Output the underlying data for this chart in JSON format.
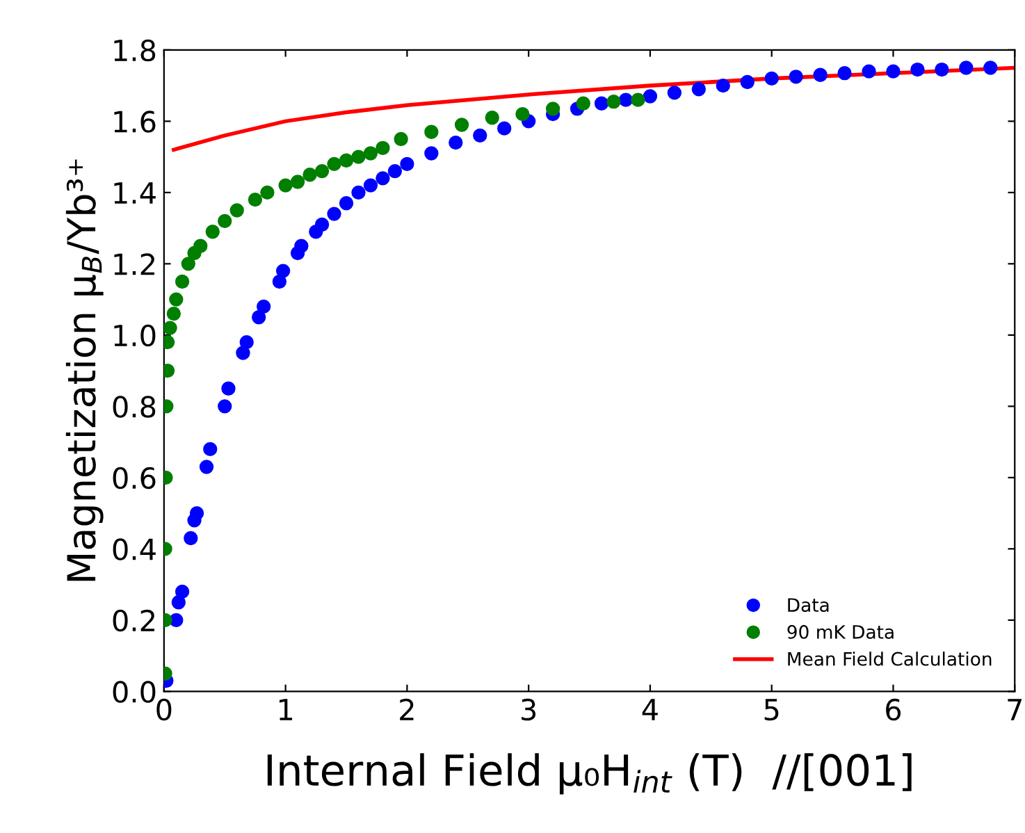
{
  "chart_data": {
    "type": "scatter",
    "xlabel": "Internal Field μ₀H$_{int}$ (T)  //[001]",
    "ylabel": "Magnetization μ$_{B}$/Yb³⁺",
    "xlim": [
      0,
      7
    ],
    "ylim": [
      0,
      1.8
    ],
    "xticks": [
      0,
      1,
      2,
      3,
      4,
      5,
      6,
      7
    ],
    "yticks": [
      {
        "value": 0,
        "label": "0.0"
      },
      {
        "value": 0.2,
        "label": "0.2"
      },
      {
        "value": 0.4,
        "label": "0.4"
      },
      {
        "value": 0.6,
        "label": "0.6"
      },
      {
        "value": 0.8,
        "label": "0.8"
      },
      {
        "value": 1.0,
        "label": "1.0"
      },
      {
        "value": 1.2,
        "label": "1.2"
      },
      {
        "value": 1.4,
        "label": "1.4"
      },
      {
        "value": 1.6,
        "label": "1.6"
      },
      {
        "value": 1.8,
        "label": "1.8"
      }
    ],
    "grid": false,
    "legend": "bottom right",
    "series": [
      {
        "name": "Data",
        "color": "#0000ff",
        "marker": "circle",
        "x": [
          0.02,
          0.1,
          0.12,
          0.15,
          0.22,
          0.25,
          0.27,
          0.35,
          0.38,
          0.5,
          0.53,
          0.65,
          0.68,
          0.78,
          0.82,
          0.95,
          0.98,
          1.1,
          1.13,
          1.25,
          1.3,
          1.4,
          1.5,
          1.6,
          1.7,
          1.8,
          1.9,
          2.0,
          2.2,
          2.4,
          2.6,
          2.8,
          3.0,
          3.2,
          3.4,
          3.6,
          3.8,
          4.0,
          4.2,
          4.4,
          4.6,
          4.8,
          5.0,
          5.2,
          5.4,
          5.6,
          5.8,
          6.0,
          6.2,
          6.4,
          6.6,
          6.8
        ],
        "values": [
          0.03,
          0.2,
          0.25,
          0.28,
          0.43,
          0.48,
          0.5,
          0.63,
          0.68,
          0.8,
          0.85,
          0.95,
          0.98,
          1.05,
          1.08,
          1.15,
          1.18,
          1.23,
          1.25,
          1.29,
          1.31,
          1.34,
          1.37,
          1.4,
          1.42,
          1.44,
          1.46,
          1.48,
          1.51,
          1.54,
          1.56,
          1.58,
          1.6,
          1.62,
          1.635,
          1.65,
          1.66,
          1.67,
          1.68,
          1.69,
          1.7,
          1.71,
          1.72,
          1.725,
          1.73,
          1.735,
          1.74,
          1.74,
          1.745,
          1.745,
          1.75,
          1.75
        ]
      },
      {
        "name": "90 mK Data",
        "color": "#007f00",
        "marker": "circle",
        "x": [
          0.01,
          0.01,
          0.01,
          0.015,
          0.02,
          0.03,
          0.03,
          0.05,
          0.08,
          0.1,
          0.15,
          0.2,
          0.25,
          0.3,
          0.4,
          0.5,
          0.6,
          0.75,
          0.85,
          1.0,
          1.1,
          1.2,
          1.3,
          1.4,
          1.5,
          1.6,
          1.7,
          1.8,
          1.95,
          2.2,
          2.45,
          2.7,
          2.95,
          3.2,
          3.45,
          3.7,
          3.9
        ],
        "values": [
          0.05,
          0.2,
          0.4,
          0.6,
          0.8,
          0.9,
          0.98,
          1.02,
          1.06,
          1.1,
          1.15,
          1.2,
          1.23,
          1.25,
          1.29,
          1.32,
          1.35,
          1.38,
          1.4,
          1.42,
          1.43,
          1.45,
          1.46,
          1.48,
          1.49,
          1.5,
          1.51,
          1.525,
          1.55,
          1.57,
          1.59,
          1.61,
          1.62,
          1.635,
          1.65,
          1.655,
          1.66
        ]
      },
      {
        "name": "Mean Field Calculation",
        "color": "#ff0000",
        "type": "line",
        "marker": "none",
        "x": [
          0.08,
          0.5,
          1,
          1.5,
          2,
          3,
          4,
          5,
          6,
          7
        ],
        "values": [
          1.52,
          1.56,
          1.6,
          1.625,
          1.645,
          1.675,
          1.7,
          1.72,
          1.735,
          1.75
        ]
      }
    ]
  }
}
